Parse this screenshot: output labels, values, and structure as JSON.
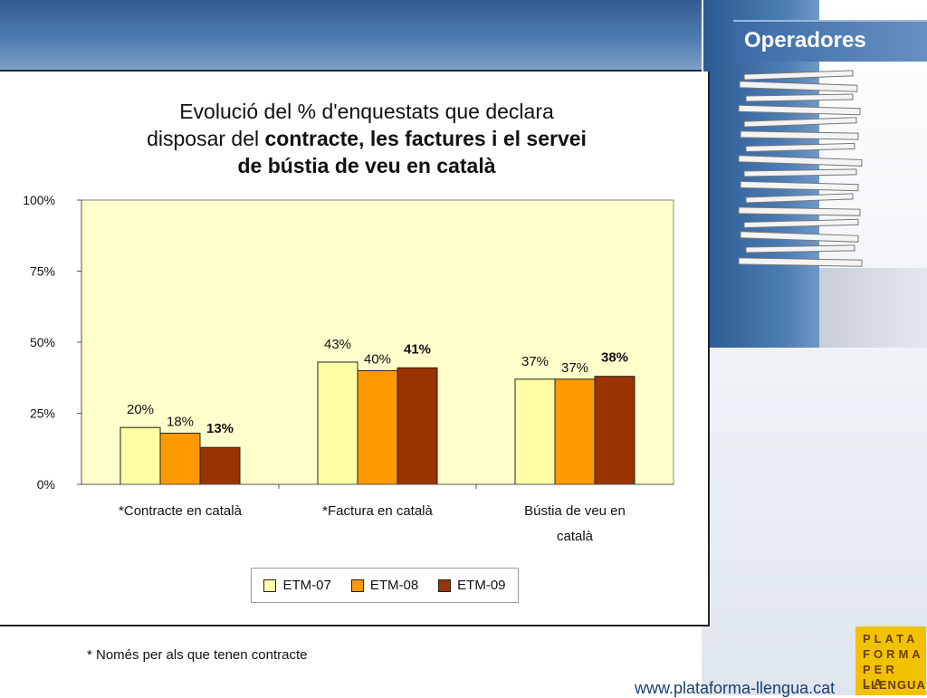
{
  "header": {
    "section_title": "Operadores"
  },
  "title": {
    "line1": "Evolució del % d'enquestats que declara",
    "line2_normal": "disposar del ",
    "line2_bold": "contracte, les factures i el servei",
    "line3_bold": "de bústia de veu en català"
  },
  "chart_data": {
    "type": "bar",
    "title": "Evolució del % d'enquestats que declara disposar del contracte, les factures i el servei de bústia de veu en català",
    "categories": [
      {
        "label": "*Contracte en català",
        "lines": [
          "*Contracte en català"
        ]
      },
      {
        "label": "*Factura en català",
        "lines": [
          "*Factura en català"
        ]
      },
      {
        "label": "Bústia de veu en català",
        "lines": [
          "Bústia de veu en",
          "català"
        ]
      }
    ],
    "series": [
      {
        "name": "ETM-07",
        "values": [
          20,
          43,
          37
        ],
        "labels": [
          "20%",
          "43%",
          "37%"
        ],
        "color": "#ffffa6",
        "bold_labels": false
      },
      {
        "name": "ETM-08",
        "values": [
          18,
          40,
          37
        ],
        "labels": [
          "18%",
          "40%",
          "37%"
        ],
        "color": "#ff9900",
        "bold_labels": false
      },
      {
        "name": "ETM-09",
        "values": [
          13,
          41,
          38
        ],
        "labels": [
          "13%",
          "41%",
          "38%"
        ],
        "color": "#993300",
        "bold_labels": true
      }
    ],
    "y_ticks": [
      {
        "value": 0,
        "label": "0%"
      },
      {
        "value": 25,
        "label": "25%"
      },
      {
        "value": 50,
        "label": "50%"
      },
      {
        "value": 75,
        "label": "75%"
      },
      {
        "value": 100,
        "label": "100%"
      }
    ],
    "ylim": [
      0,
      100
    ],
    "plot_background": "#ffffcc",
    "grid": false,
    "legend_position": "bottom-center"
  },
  "footnote": "* Només per als que tenen contracte",
  "url": "www.plataforma-llengua.cat",
  "logo": {
    "rows": [
      "PLATA",
      "FORMA",
      "PER LA",
      "LLENGUA"
    ]
  },
  "colors": {
    "header_blue": "#2f5b92",
    "accent_blue": "#1a3f6e",
    "logo_yellow": "#f2c200"
  }
}
